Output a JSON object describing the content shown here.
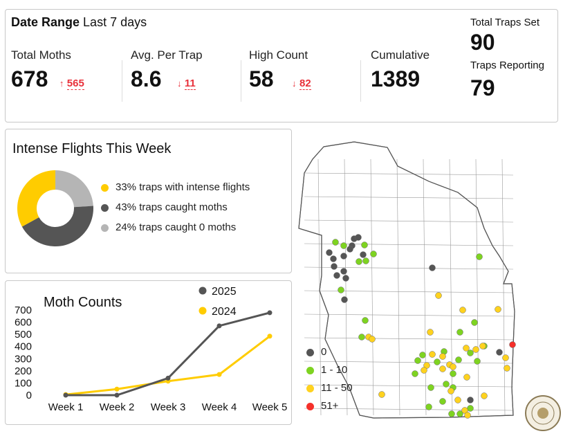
{
  "summary": {
    "date_range_label": "Date Range",
    "date_range_value": "Last 7 days",
    "metrics": [
      {
        "label": "Total Moths",
        "value": "678",
        "delta_arrow": "↑",
        "delta": "565"
      },
      {
        "label": "Avg. Per Trap",
        "value": "8.6",
        "delta_arrow": "↓",
        "delta": "11"
      },
      {
        "label": "High Count",
        "value": "58",
        "delta_arrow": "↓",
        "delta": "82"
      },
      {
        "label": "Cumulative",
        "value": "1389"
      }
    ],
    "total_traps_label": "Total Traps Set",
    "total_traps": "90",
    "reporting_label": "Traps Reporting",
    "reporting": "79"
  },
  "chart_data": [
    {
      "type": "pie",
      "title": "Intense Flights This Week",
      "donut": true,
      "slices": [
        {
          "label": "33% traps with intense flights",
          "value": 33,
          "color": "#ffcc00"
        },
        {
          "label": "43% traps caught moths",
          "value": 43,
          "color": "#555555"
        },
        {
          "label": "24% traps caught 0 moths",
          "value": 24,
          "color": "#b5b5b5"
        }
      ]
    },
    {
      "type": "line",
      "title": "Moth Counts",
      "categories": [
        "Week 1",
        "Week 2",
        "Week 3",
        "Week 4",
        "Week 5"
      ],
      "ylim": [
        0,
        700
      ],
      "yticks": [
        "0",
        "100",
        "200",
        "300",
        "400",
        "500",
        "600",
        "700"
      ],
      "legend": "top-right",
      "series": [
        {
          "name": "2025",
          "color": "#555555",
          "values": [
            0,
            0,
            140,
            570,
            678
          ]
        },
        {
          "name": "2024",
          "color": "#ffcc00",
          "values": [
            5,
            50,
            115,
            170,
            485
          ]
        }
      ]
    }
  ],
  "map": {
    "legend": [
      {
        "label": "0",
        "color": "#555555"
      },
      {
        "label": "1 - 10",
        "color": "#7ed321"
      },
      {
        "label": "11 - 50",
        "color": "#ffd21f"
      },
      {
        "label": "51+",
        "color": "#f5302a"
      }
    ]
  }
}
